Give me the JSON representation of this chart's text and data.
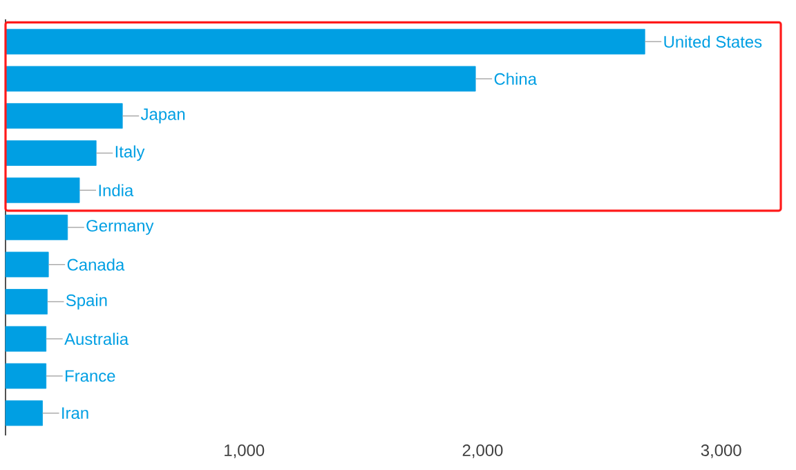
{
  "chart_data": {
    "type": "bar",
    "orientation": "horizontal",
    "categories": [
      "United States",
      "China",
      "Japan",
      "Italy",
      "India",
      "Germany",
      "Canada",
      "Spain",
      "Australia",
      "France",
      "Iran"
    ],
    "values": [
      2680,
      1970,
      490,
      380,
      310,
      260,
      180,
      175,
      170,
      170,
      155
    ],
    "color": "#009fe3",
    "xlim": [
      0,
      3250
    ],
    "xticks": [
      {
        "value": 1000,
        "label": "1,000"
      },
      {
        "value": 2000,
        "label": "2,000"
      },
      {
        "value": 3000,
        "label": "3,000"
      }
    ]
  }
}
